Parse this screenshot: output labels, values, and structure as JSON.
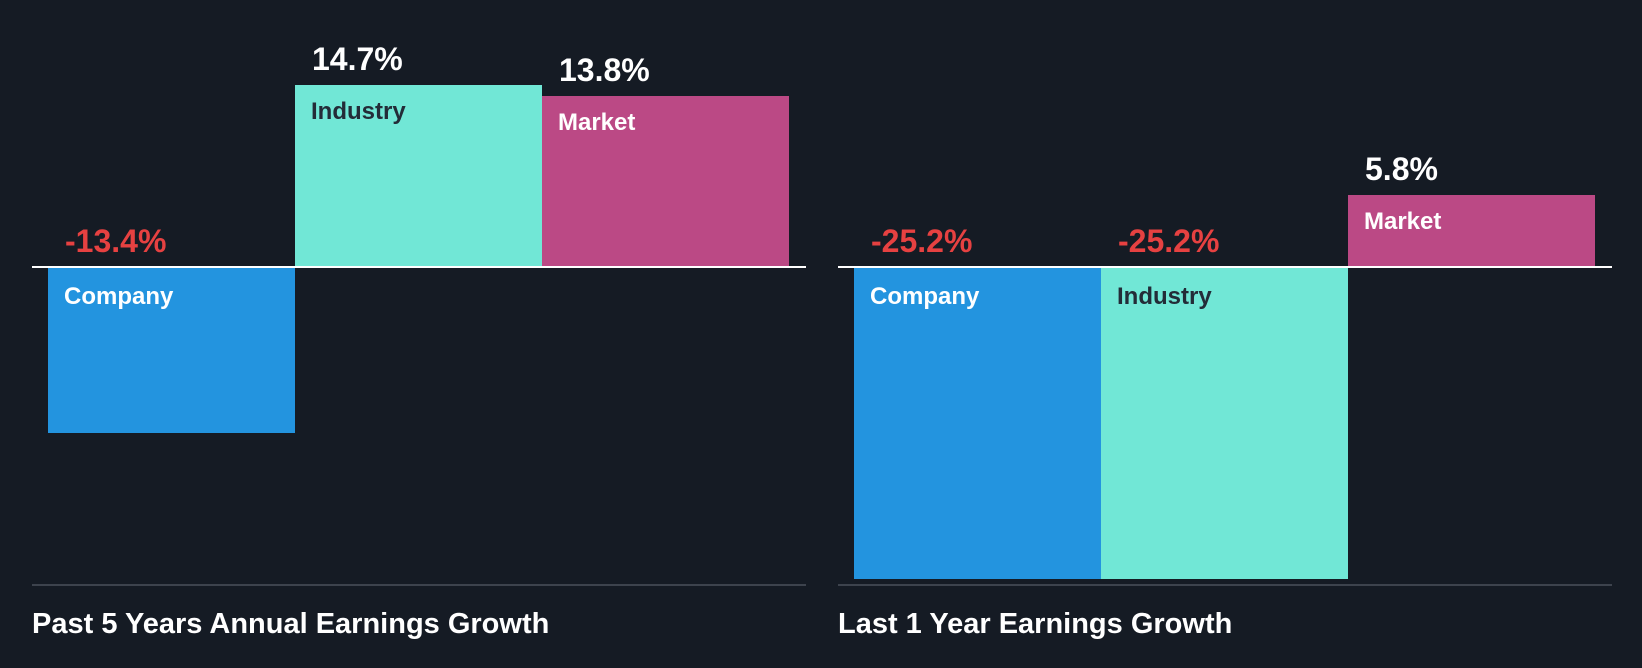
{
  "colors": {
    "background": "#151b24",
    "company": "#2394df",
    "industry": "#71e7d6",
    "market": "#bb4985",
    "negative_value": "#e64141",
    "positive_value": "#ffffff",
    "zero_line": "#ffffff",
    "axis_line": "#3d434d"
  },
  "charts": [
    {
      "title": "Past 5 Years Annual Earnings Growth",
      "bars": [
        {
          "label": "Company",
          "value": -13.4,
          "display": "-13.4%"
        },
        {
          "label": "Industry",
          "value": 14.7,
          "display": "14.7%"
        },
        {
          "label": "Market",
          "value": 13.8,
          "display": "13.8%"
        }
      ]
    },
    {
      "title": "Last 1 Year Earnings Growth",
      "bars": [
        {
          "label": "Company",
          "value": -25.2,
          "display": "-25.2%"
        },
        {
          "label": "Industry",
          "value": -25.2,
          "display": "-25.2%"
        },
        {
          "label": "Market",
          "value": 5.8,
          "display": "5.8%"
        }
      ]
    }
  ],
  "chart_data": [
    {
      "type": "bar",
      "title": "Past 5 Years Annual Earnings Growth",
      "categories": [
        "Company",
        "Industry",
        "Market"
      ],
      "values": [
        -13.4,
        14.7,
        13.8
      ],
      "unit": "%",
      "xlabel": "",
      "ylabel": "",
      "grid": false,
      "legend": "inline bar labels"
    },
    {
      "type": "bar",
      "title": "Last 1 Year Earnings Growth",
      "categories": [
        "Company",
        "Industry",
        "Market"
      ],
      "values": [
        -25.2,
        -25.2,
        5.8
      ],
      "unit": "%",
      "xlabel": "",
      "ylabel": "",
      "grid": false,
      "legend": "inline bar labels"
    }
  ]
}
